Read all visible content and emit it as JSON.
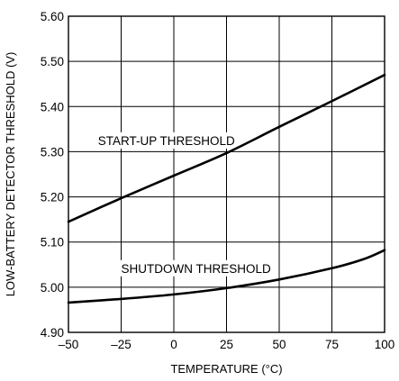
{
  "chart_data": {
    "type": "line",
    "title": "",
    "xlabel": "TEMPERATURE (°C)",
    "ylabel": "LOW-BATTERY DETECTOR THRESHOLD (V)",
    "xlim": [
      -50,
      100
    ],
    "ylim": [
      4.9,
      5.6
    ],
    "x_ticks": [
      -50,
      -25,
      0,
      25,
      50,
      75,
      100
    ],
    "x_tick_labels": [
      "–50",
      "–25",
      "0",
      "25",
      "50",
      "75",
      "100"
    ],
    "y_ticks": [
      4.9,
      5.0,
      5.1,
      5.2,
      5.3,
      5.4,
      5.5,
      5.6
    ],
    "y_tick_labels": [
      "4.90",
      "5.00",
      "5.10",
      "5.20",
      "5.30",
      "5.40",
      "5.50",
      "5.60"
    ],
    "grid": true,
    "legend": "none",
    "series": [
      {
        "name": "START-UP THRESHOLD",
        "x": [
          -50,
          -25,
          0,
          25,
          50,
          75,
          100
        ],
        "y": [
          5.145,
          5.197,
          5.247,
          5.297,
          5.355,
          5.412,
          5.47
        ]
      },
      {
        "name": "SHUTDOWN THRESHOLD",
        "x": [
          -50,
          -25,
          0,
          25,
          50,
          75,
          90,
          100
        ],
        "y": [
          4.966,
          4.974,
          4.984,
          4.998,
          5.017,
          5.042,
          5.062,
          5.082
        ]
      }
    ],
    "annotations": [
      {
        "text": "START-UP THRESHOLD",
        "x": -36,
        "y": 5.315
      },
      {
        "text": "SHUTDOWN THRESHOLD",
        "x": -25,
        "y": 5.032
      }
    ]
  }
}
